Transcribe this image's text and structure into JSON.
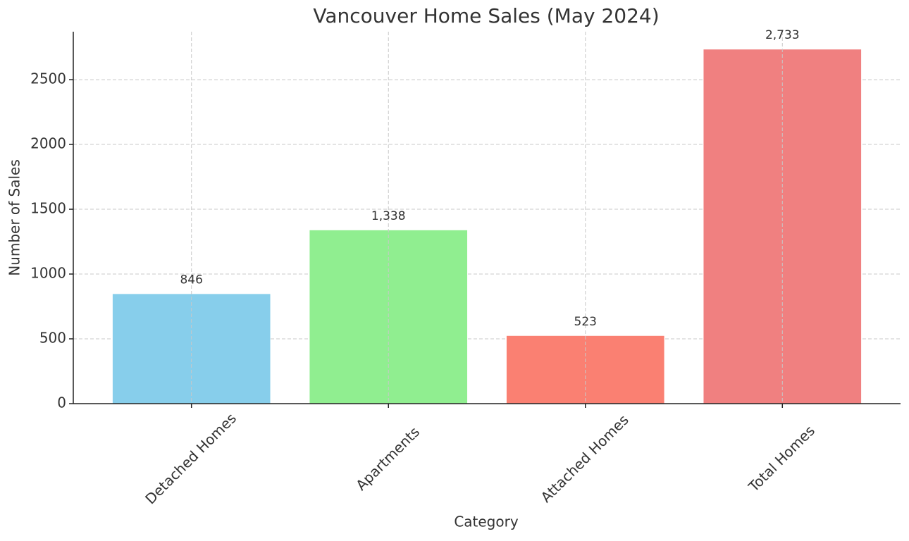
{
  "chart_data": {
    "type": "bar",
    "title": "Vancouver Home Sales (May 2024)",
    "x_label": "Category",
    "y_label": "Number of Sales",
    "categories": [
      "Detached Homes",
      "Apartments",
      "Attached Homes",
      "Total Homes"
    ],
    "values": [
      846,
      1338,
      523,
      2733
    ],
    "value_labels": [
      "846",
      "1,338",
      "523",
      "2,733"
    ],
    "colors": [
      "#87ceeb",
      "#90ee90",
      "#fa8072",
      "#f08080"
    ],
    "ylim": [
      0,
      2870
    ],
    "yticks": [
      0,
      500,
      1000,
      1500,
      2000,
      2500
    ],
    "grid": true
  }
}
